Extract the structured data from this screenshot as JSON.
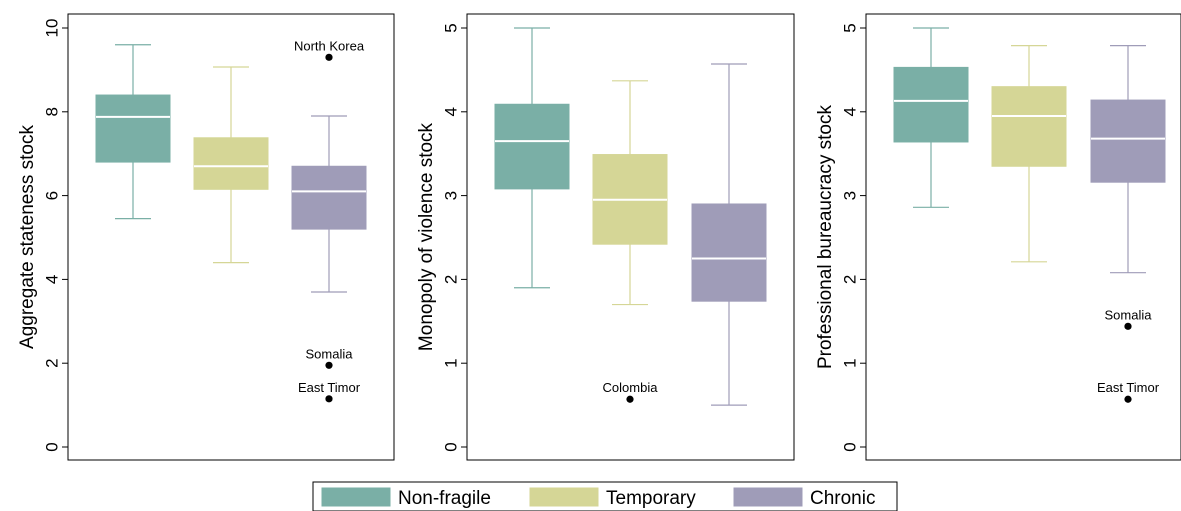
{
  "chart_data": [
    {
      "type": "boxplot",
      "ylabel": "Aggregate stateness stock",
      "ylim": [
        0,
        10
      ],
      "yticks": [
        "0",
        "2",
        "4",
        "6",
        "8",
        "10"
      ],
      "series": [
        {
          "name": "Non-fragile",
          "color": "#7aafa6",
          "min": 5.45,
          "q1": 6.8,
          "median": 7.88,
          "q3": 8.4,
          "max": 9.6
        },
        {
          "name": "Temporary",
          "color": "#d5d696",
          "min": 4.4,
          "q1": 6.15,
          "median": 6.7,
          "q3": 7.38,
          "max": 9.07
        },
        {
          "name": "Chronic",
          "color": "#9f9cb8",
          "min": 3.7,
          "q1": 5.2,
          "median": 6.1,
          "q3": 6.7,
          "max": 7.9
        }
      ],
      "outliers": [
        {
          "series": 2,
          "value": 9.3,
          "label": "North Korea"
        },
        {
          "series": 2,
          "value": 1.95,
          "label": "Somalia"
        },
        {
          "series": 2,
          "value": 1.15,
          "label": "East Timor"
        }
      ]
    },
    {
      "type": "boxplot",
      "ylabel": "Monopoly of violence stock",
      "ylim": [
        0,
        5
      ],
      "yticks": [
        "0",
        "1",
        "2",
        "3",
        "4",
        "5"
      ],
      "series": [
        {
          "name": "Non-fragile",
          "color": "#7aafa6",
          "min": 1.9,
          "q1": 3.08,
          "median": 3.65,
          "q3": 4.09,
          "max": 5.0
        },
        {
          "name": "Temporary",
          "color": "#d5d696",
          "min": 1.7,
          "q1": 2.42,
          "median": 2.95,
          "q3": 3.49,
          "max": 4.37
        },
        {
          "name": "Chronic",
          "color": "#9f9cb8",
          "min": 0.5,
          "q1": 1.74,
          "median": 2.25,
          "q3": 2.9,
          "max": 4.57
        }
      ],
      "outliers": [
        {
          "series": 1,
          "value": 0.57,
          "label": "Colombia"
        }
      ]
    },
    {
      "type": "boxplot",
      "ylabel": "Professional bureaucracy stock",
      "ylim": [
        0,
        5
      ],
      "yticks": [
        "0",
        "1",
        "2",
        "3",
        "4",
        "5"
      ],
      "series": [
        {
          "name": "Non-fragile",
          "color": "#7aafa6",
          "min": 2.86,
          "q1": 3.64,
          "median": 4.13,
          "q3": 4.53,
          "max": 5.0
        },
        {
          "name": "Temporary",
          "color": "#d5d696",
          "min": 2.21,
          "q1": 3.35,
          "median": 3.95,
          "q3": 4.3,
          "max": 4.79
        },
        {
          "name": "Chronic",
          "color": "#9f9cb8",
          "min": 2.08,
          "q1": 3.16,
          "median": 3.68,
          "q3": 4.14,
          "max": 4.79
        }
      ],
      "outliers": [
        {
          "series": 2,
          "value": 1.44,
          "label": "Somalia"
        },
        {
          "series": 2,
          "value": 0.57,
          "label": "East Timor"
        }
      ]
    }
  ],
  "legend": {
    "placement": "bottom",
    "items": [
      {
        "label": "Non-fragile",
        "color": "#7aafa6"
      },
      {
        "label": "Temporary",
        "color": "#d5d696"
      },
      {
        "label": "Chronic",
        "color": "#9f9cb8"
      }
    ]
  }
}
